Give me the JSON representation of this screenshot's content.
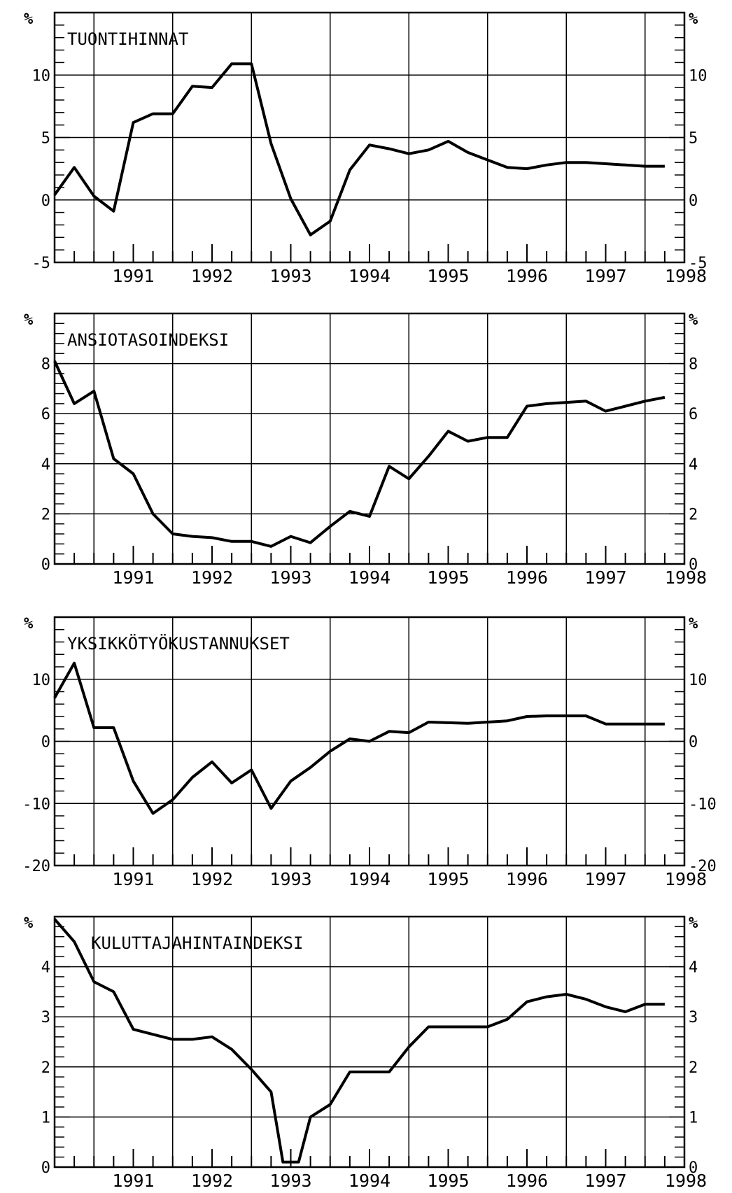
{
  "chart_data": [
    {
      "type": "line",
      "title": "TUONTIHINNAT",
      "unit_left": "%",
      "unit_right": "%",
      "ylim": [
        -5,
        15
      ],
      "yticks": [
        -5,
        0,
        5,
        10
      ],
      "xlim": [
        1990.5,
        1998.5
      ],
      "xticks": [
        "1991",
        "1992",
        "1993",
        "1994",
        "1995",
        "1996",
        "1997",
        "1998"
      ],
      "grid": true,
      "x": [
        1990.5,
        1990.75,
        1991.0,
        1991.25,
        1991.5,
        1991.75,
        1992.0,
        1992.25,
        1992.5,
        1992.75,
        1993.0,
        1993.25,
        1993.5,
        1993.75,
        1994.0,
        1994.25,
        1994.5,
        1994.75,
        1995.0,
        1995.25,
        1995.5,
        1995.75,
        1996.0,
        1996.25,
        1996.5,
        1996.75,
        1997.0,
        1997.25,
        1997.5,
        1997.75,
        1998.0,
        1998.25
      ],
      "values": [
        0.4,
        2.6,
        0.3,
        -0.9,
        6.2,
        6.9,
        6.9,
        9.1,
        9.0,
        10.9,
        10.9,
        4.5,
        0.1,
        -2.8,
        -1.7,
        2.4,
        4.4,
        4.1,
        3.7,
        4.0,
        4.7,
        3.8,
        3.2,
        2.6,
        2.5,
        2.8,
        3.0,
        3.0,
        2.9,
        2.8,
        2.7,
        2.7
      ]
    },
    {
      "type": "line",
      "title": "ANSIOTASOINDEKSI",
      "unit_left": "%",
      "unit_right": "%",
      "ylim": [
        0,
        10
      ],
      "yticks": [
        0,
        2,
        4,
        6,
        8
      ],
      "xlim": [
        1990.5,
        1998.5
      ],
      "xticks": [
        "1991",
        "1992",
        "1993",
        "1994",
        "1995",
        "1996",
        "1997",
        "1998"
      ],
      "grid": true,
      "x": [
        1990.5,
        1990.75,
        1991.0,
        1991.25,
        1991.5,
        1991.75,
        1992.0,
        1992.25,
        1992.5,
        1992.75,
        1993.0,
        1993.25,
        1993.5,
        1993.75,
        1994.0,
        1994.25,
        1994.5,
        1994.75,
        1995.0,
        1995.25,
        1995.5,
        1995.75,
        1996.0,
        1996.25,
        1996.5,
        1996.75,
        1997.0,
        1997.25,
        1997.5,
        1997.75,
        1998.0,
        1998.25
      ],
      "values": [
        8.1,
        6.4,
        6.9,
        4.2,
        3.6,
        2.0,
        1.2,
        1.1,
        1.05,
        0.9,
        0.9,
        0.7,
        1.1,
        0.85,
        1.5,
        2.1,
        1.9,
        3.9,
        3.4,
        4.3,
        5.3,
        4.9,
        5.05,
        5.05,
        6.3,
        6.4,
        6.45,
        6.5,
        6.1,
        6.3,
        6.5,
        6.65
      ]
    },
    {
      "type": "line",
      "title": "YKSIKKÖTYÖKUSTANNUKSET",
      "unit_left": "%",
      "unit_right": "%",
      "ylim": [
        -20,
        20
      ],
      "yticks": [
        -20,
        -10,
        0,
        10
      ],
      "xlim": [
        1990.5,
        1998.5
      ],
      "xticks": [
        "1991",
        "1992",
        "1993",
        "1994",
        "1995",
        "1996",
        "1997",
        "1998"
      ],
      "grid": true,
      "x": [
        1990.5,
        1990.75,
        1991.0,
        1991.25,
        1991.5,
        1991.75,
        1992.0,
        1992.25,
        1992.5,
        1992.75,
        1993.0,
        1993.25,
        1993.5,
        1993.75,
        1994.0,
        1994.25,
        1994.5,
        1994.75,
        1995.0,
        1995.25,
        1995.5,
        1995.75,
        1996.0,
        1996.25,
        1996.5,
        1996.75,
        1997.0,
        1997.25,
        1997.5,
        1997.75,
        1998.0,
        1998.25
      ],
      "values": [
        7.0,
        12.6,
        2.2,
        2.2,
        -6.4,
        -11.6,
        -9.4,
        -5.8,
        -3.3,
        -6.7,
        -4.6,
        -10.8,
        -6.4,
        -4.2,
        -1.6,
        0.4,
        0.0,
        1.6,
        1.4,
        3.1,
        3.0,
        2.9,
        3.1,
        3.3,
        4.0,
        4.1,
        4.1,
        4.1,
        2.8,
        2.8,
        2.8,
        2.8
      ]
    },
    {
      "type": "line",
      "title": "KULUTTAJAHINTAINDEKSI",
      "unit_left": "%",
      "unit_right": "%",
      "ylim": [
        0,
        5
      ],
      "yticks": [
        0,
        1,
        2,
        3,
        4
      ],
      "xlim": [
        1990.5,
        1998.5
      ],
      "xticks": [
        "1991",
        "1992",
        "1993",
        "1994",
        "1995",
        "1996",
        "1997",
        "1998"
      ],
      "grid": true,
      "x": [
        1990.5,
        1990.75,
        1991.0,
        1991.25,
        1991.5,
        1991.75,
        1992.0,
        1992.25,
        1992.5,
        1992.75,
        1993.0,
        1993.25,
        1993.4,
        1993.6,
        1993.75,
        1994.0,
        1994.25,
        1994.5,
        1994.75,
        1995.0,
        1995.25,
        1995.5,
        1995.75,
        1996.0,
        1996.25,
        1996.5,
        1996.75,
        1997.0,
        1997.25,
        1997.5,
        1997.75,
        1998.0,
        1998.25
      ],
      "values": [
        4.95,
        4.5,
        3.7,
        3.5,
        2.75,
        2.65,
        2.55,
        2.55,
        2.6,
        2.35,
        1.95,
        1.5,
        0.1,
        0.1,
        1.0,
        1.25,
        1.9,
        1.9,
        1.9,
        2.4,
        2.8,
        2.8,
        2.8,
        2.8,
        2.95,
        3.3,
        3.4,
        3.45,
        3.35,
        3.2,
        3.1,
        3.25,
        3.25
      ]
    }
  ]
}
